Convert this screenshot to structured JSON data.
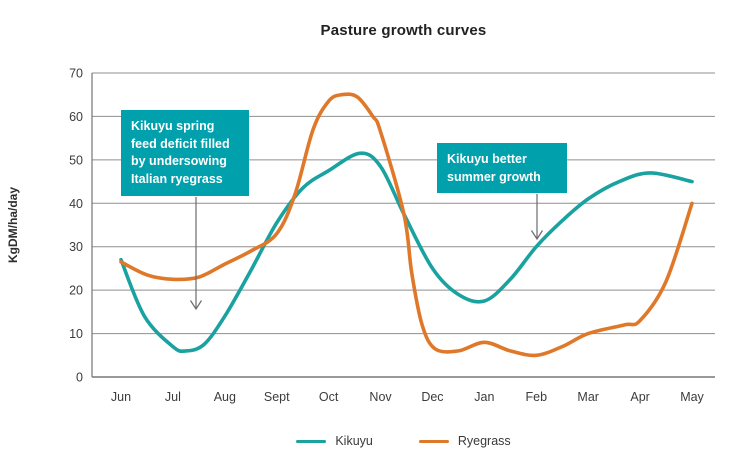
{
  "chart": {
    "title": "Pasture growth curves",
    "ylabel": "KgDM/ha/day"
  },
  "chart_data": {
    "type": "line",
    "title": "Pasture growth curves",
    "xlabel": "",
    "ylabel": "KgDM/ha/day",
    "ylim": [
      0,
      70
    ],
    "yticks": [
      0,
      10,
      20,
      30,
      40,
      50,
      60,
      70
    ],
    "grid": "horizontal",
    "legend_position": "bottom-center",
    "categories": [
      "Jun",
      "Jul",
      "Aug",
      "Sept",
      "Oct",
      "Nov",
      "Dec",
      "Jan",
      "Feb",
      "Mar",
      "Apr",
      "May"
    ],
    "series": [
      {
        "name": "Kikuyu",
        "color": "#1aa2a0",
        "values": [
          27,
          7,
          14,
          36,
          47,
          48,
          25,
          17.5,
          30,
          41,
          47,
          45
        ],
        "peak_note": "peak ~51.5 between Oct and Nov",
        "draw_points": [
          [
            0,
            27
          ],
          [
            0.45,
            14
          ],
          [
            1,
            7
          ],
          [
            1.25,
            6
          ],
          [
            1.6,
            7.5
          ],
          [
            2,
            14
          ],
          [
            2.5,
            24.5
          ],
          [
            3,
            35.5
          ],
          [
            3.5,
            43.5
          ],
          [
            4,
            47.5
          ],
          [
            4.6,
            51.5
          ],
          [
            5,
            48.5
          ],
          [
            5.45,
            37.5
          ],
          [
            6,
            25
          ],
          [
            6.5,
            19
          ],
          [
            7,
            17.5
          ],
          [
            7.5,
            22.5
          ],
          [
            8,
            30
          ],
          [
            8.5,
            36
          ],
          [
            9,
            41
          ],
          [
            9.6,
            45
          ],
          [
            10.2,
            47
          ],
          [
            11,
            45
          ]
        ]
      },
      {
        "name": "Ryegrass",
        "color": "#e0782a",
        "values": [
          26.5,
          22.5,
          26,
          33,
          64.5,
          56.5,
          6.5,
          8,
          5,
          10,
          13,
          40
        ],
        "peak_note": "peak ~65 mid-Oct",
        "draw_points": [
          [
            0,
            26.5
          ],
          [
            0.5,
            23.5
          ],
          [
            1,
            22.5
          ],
          [
            1.5,
            23
          ],
          [
            2,
            26
          ],
          [
            2.5,
            29
          ],
          [
            3,
            33
          ],
          [
            3.35,
            42
          ],
          [
            3.7,
            57
          ],
          [
            4,
            63.5
          ],
          [
            4.25,
            65
          ],
          [
            4.55,
            64.5
          ],
          [
            4.85,
            60
          ],
          [
            5,
            56.5
          ],
          [
            5.45,
            37.5
          ],
          [
            5.6,
            24
          ],
          [
            5.8,
            12
          ],
          [
            6.05,
            6.5
          ],
          [
            6.5,
            6
          ],
          [
            7,
            8
          ],
          [
            7.5,
            6
          ],
          [
            8,
            5
          ],
          [
            8.5,
            7
          ],
          [
            9,
            10
          ],
          [
            9.7,
            12
          ],
          [
            10,
            13
          ],
          [
            10.5,
            22
          ],
          [
            11,
            40
          ]
        ]
      }
    ]
  },
  "annotations": [
    {
      "text": "Kikuyu spring feed deficit filled by undersowing Italian ryegrass"
    },
    {
      "text": "Kikuyu better summer growth"
    }
  ],
  "legend": {
    "items": [
      "Kikuyu",
      "Ryegrass"
    ]
  },
  "colors": {
    "annotation_box": "#00a0ac",
    "kikuyu_line": "#1aa2a0",
    "ryegrass_line": "#e0782a",
    "gridline": "#8f8f8f",
    "axis_line": "#757575",
    "tick_text": "#3c3c3c",
    "arrow": "#6b6b6b"
  }
}
